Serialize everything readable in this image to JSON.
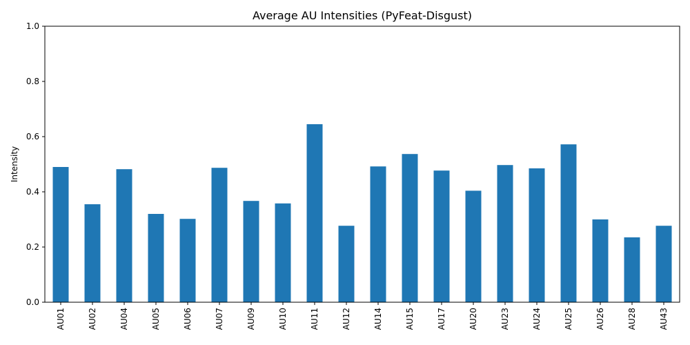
{
  "chart_data": {
    "type": "bar",
    "title": "Average AU Intensities (PyFeat-Disgust)",
    "xlabel": "",
    "ylabel": "Intensity",
    "ylim": [
      0,
      1.0
    ],
    "yticks": [
      "0.0",
      "0.2",
      "0.4",
      "0.6",
      "0.8",
      "1.0"
    ],
    "grid": false,
    "bar_color": "#1f77b4",
    "categories": [
      "AU01",
      "AU02",
      "AU04",
      "AU05",
      "AU06",
      "AU07",
      "AU09",
      "AU10",
      "AU11",
      "AU12",
      "AU14",
      "AU15",
      "AU17",
      "AU20",
      "AU23",
      "AU24",
      "AU25",
      "AU26",
      "AU28",
      "AU43"
    ],
    "values": [
      0.49,
      0.355,
      0.482,
      0.32,
      0.302,
      0.487,
      0.367,
      0.358,
      0.645,
      0.277,
      0.492,
      0.537,
      0.477,
      0.404,
      0.497,
      0.485,
      0.572,
      0.3,
      0.235,
      0.277
    ]
  }
}
